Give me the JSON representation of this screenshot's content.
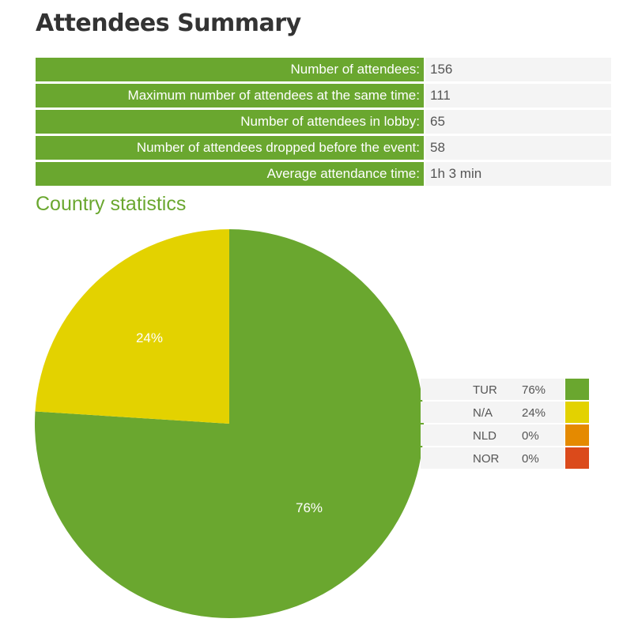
{
  "title": "Attendees Summary",
  "summary": [
    {
      "label": "Number of attendees:",
      "value": "156"
    },
    {
      "label": "Maximum number of attendees at the same time:",
      "value": "111"
    },
    {
      "label": "Number of attendees in lobby:",
      "value": "65"
    },
    {
      "label": "Number of attendees dropped before the event:",
      "value": "58"
    },
    {
      "label": "Average attendance time:",
      "value": "1h 3 min"
    }
  ],
  "section_title": "Country statistics",
  "chart_data": {
    "type": "pie",
    "categories": [
      "TUR",
      "N/A",
      "NLD",
      "NOR"
    ],
    "values": [
      76,
      24,
      0,
      0
    ],
    "labels": [
      "76%",
      "24%",
      "0%",
      "0%"
    ],
    "colors": [
      "#6aa72f",
      "#e3d200",
      "#e58a00",
      "#db4a1b"
    ],
    "legend_position": "right"
  }
}
